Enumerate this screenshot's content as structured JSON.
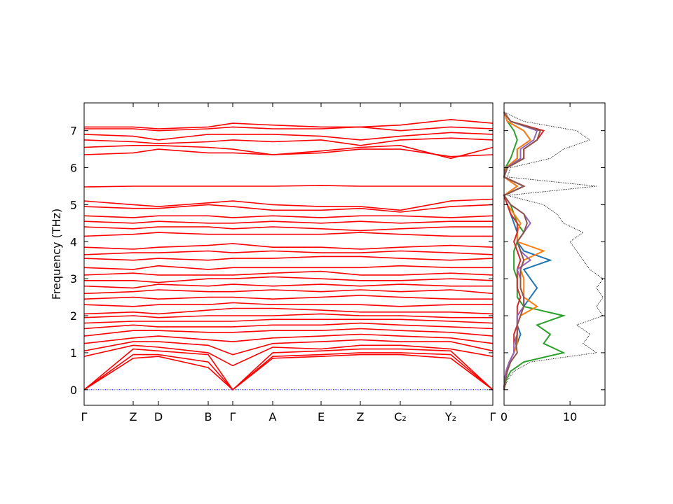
{
  "chart_data": [
    {
      "type": "bands",
      "y_label": "Frequency (THz)",
      "color": "#ff0000",
      "x": [
        0,
        0.7,
        1.06,
        1.77,
        2.12,
        2.69,
        3.38,
        3.94,
        4.51,
        5.23,
        5.83
      ],
      "xlim": [
        0,
        5.83
      ],
      "xticks": [
        {
          "value": 0,
          "label": "Γ"
        },
        {
          "value": 0.7,
          "label": "Z"
        },
        {
          "value": 1.06,
          "label": "D"
        },
        {
          "value": 1.77,
          "label": "B"
        },
        {
          "value": 2.12,
          "label": "Γ"
        },
        {
          "value": 2.69,
          "label": "A"
        },
        {
          "value": 3.38,
          "label": "E"
        },
        {
          "value": 3.94,
          "label": "Z"
        },
        {
          "value": 4.51,
          "label": "C₂"
        },
        {
          "value": 5.23,
          "label": "Y₂"
        },
        {
          "value": 5.83,
          "label": "Γ"
        }
      ],
      "ylim": [
        -0.42,
        7.75
      ],
      "yticks": [
        0,
        1,
        2,
        3,
        4,
        5,
        6,
        7
      ],
      "hline": 0,
      "hline_color": "#0000ff",
      "bands": [
        [
          0,
          0.85,
          0.9,
          0.6,
          0,
          0.85,
          0.9,
          0.95,
          0.95,
          0.85,
          0
        ],
        [
          0,
          0.95,
          0.95,
          0.75,
          0,
          0.9,
          0.95,
          1.0,
          1.0,
          0.95,
          0
        ],
        [
          0,
          1.1,
          1.05,
          0.95,
          0,
          1.0,
          1.05,
          1.1,
          1.1,
          1.05,
          0
        ],
        [
          0.9,
          1.2,
          1.15,
          1.0,
          0.65,
          1.15,
          1.1,
          1.2,
          1.2,
          1.1,
          0.9
        ],
        [
          1.05,
          1.3,
          1.3,
          1.2,
          0.95,
          1.25,
          1.3,
          1.35,
          1.3,
          1.3,
          1.05
        ],
        [
          1.25,
          1.4,
          1.45,
          1.35,
          1.3,
          1.4,
          1.45,
          1.5,
          1.45,
          1.4,
          1.25
        ],
        [
          1.45,
          1.6,
          1.6,
          1.55,
          1.55,
          1.6,
          1.6,
          1.65,
          1.6,
          1.55,
          1.45
        ],
        [
          1.65,
          1.75,
          1.7,
          1.7,
          1.7,
          1.75,
          1.75,
          1.8,
          1.75,
          1.7,
          1.65
        ],
        [
          1.8,
          1.85,
          1.85,
          1.85,
          1.85,
          1.9,
          1.9,
          1.9,
          1.9,
          1.85,
          1.8
        ],
        [
          1.95,
          2.0,
          1.95,
          2.0,
          2.0,
          2.0,
          2.05,
          2.0,
          2.0,
          1.95,
          1.95
        ],
        [
          2.05,
          2.1,
          2.05,
          2.15,
          2.2,
          2.2,
          2.15,
          2.1,
          2.1,
          2.1,
          2.05
        ],
        [
          2.3,
          2.25,
          2.3,
          2.3,
          2.35,
          2.3,
          2.3,
          2.3,
          2.25,
          2.3,
          2.3
        ],
        [
          2.45,
          2.5,
          2.45,
          2.5,
          2.5,
          2.45,
          2.5,
          2.55,
          2.5,
          2.45,
          2.45
        ],
        [
          2.6,
          2.65,
          2.7,
          2.65,
          2.65,
          2.7,
          2.65,
          2.7,
          2.65,
          2.7,
          2.6
        ],
        [
          2.8,
          2.75,
          2.85,
          2.8,
          2.85,
          2.8,
          2.85,
          2.8,
          2.85,
          2.8,
          2.8
        ],
        [
          2.95,
          2.95,
          2.9,
          3.0,
          3.0,
          3.05,
          3.0,
          2.95,
          2.95,
          3.0,
          2.95
        ],
        [
          3.1,
          3.15,
          3.1,
          3.1,
          3.1,
          3.15,
          3.2,
          3.1,
          3.1,
          3.15,
          3.1
        ],
        [
          3.3,
          3.25,
          3.35,
          3.25,
          3.3,
          3.3,
          3.3,
          3.3,
          3.35,
          3.3,
          3.3
        ],
        [
          3.55,
          3.5,
          3.55,
          3.5,
          3.55,
          3.55,
          3.6,
          3.6,
          3.55,
          3.5,
          3.55
        ],
        [
          3.65,
          3.7,
          3.7,
          3.75,
          3.7,
          3.75,
          3.7,
          3.7,
          3.75,
          3.7,
          3.65
        ],
        [
          3.85,
          3.8,
          3.85,
          3.9,
          3.95,
          3.85,
          3.85,
          3.8,
          3.85,
          3.9,
          3.85
        ],
        [
          4.15,
          4.2,
          4.25,
          4.2,
          4.2,
          4.2,
          4.2,
          4.25,
          4.2,
          4.15,
          4.15
        ],
        [
          4.4,
          4.35,
          4.4,
          4.4,
          4.35,
          4.4,
          4.35,
          4.3,
          4.35,
          4.4,
          4.4
        ],
        [
          4.55,
          4.5,
          4.55,
          4.5,
          4.5,
          4.55,
          4.5,
          4.55,
          4.5,
          4.55,
          4.55
        ],
        [
          4.7,
          4.65,
          4.7,
          4.7,
          4.65,
          4.7,
          4.65,
          4.7,
          4.7,
          4.65,
          4.7
        ],
        [
          4.95,
          4.9,
          4.9,
          5.0,
          4.95,
          4.85,
          4.85,
          4.9,
          4.8,
          4.95,
          5.0
        ],
        [
          5.1,
          5.0,
          4.95,
          5.05,
          5.1,
          5.0,
          4.95,
          4.95,
          4.85,
          5.1,
          5.15
        ],
        [
          5.48,
          5.5,
          5.5,
          5.5,
          5.5,
          5.5,
          5.52,
          5.5,
          5.5,
          5.5,
          5.5
        ],
        [
          6.35,
          6.4,
          6.5,
          6.4,
          6.4,
          6.35,
          6.4,
          6.5,
          6.5,
          6.3,
          6.35
        ],
        [
          6.55,
          6.6,
          6.6,
          6.55,
          6.5,
          6.35,
          6.45,
          6.55,
          6.6,
          6.25,
          6.55
        ],
        [
          6.75,
          6.7,
          6.65,
          6.7,
          6.75,
          6.7,
          6.75,
          6.6,
          6.75,
          6.8,
          6.75
        ],
        [
          6.9,
          6.85,
          6.75,
          6.9,
          6.9,
          6.9,
          6.85,
          6.75,
          6.85,
          6.95,
          6.9
        ],
        [
          7.05,
          7.05,
          7.0,
          7.05,
          7.1,
          7.05,
          7.05,
          7.1,
          7.0,
          7.1,
          7.05
        ],
        [
          7.1,
          7.1,
          7.05,
          7.1,
          7.2,
          7.15,
          7.1,
          7.1,
          7.15,
          7.3,
          7.2
        ]
      ]
    },
    {
      "type": "dos",
      "xlim": [
        0,
        15.3
      ],
      "xticks": [
        0,
        10
      ],
      "frequencies": [
        0,
        0.25,
        0.5,
        0.75,
        1,
        1.25,
        1.5,
        1.75,
        2,
        2.25,
        2.5,
        2.75,
        3,
        3.25,
        3.5,
        3.75,
        4,
        4.25,
        4.5,
        4.75,
        5,
        5.25,
        5.5,
        5.75,
        6,
        6.25,
        6.5,
        6.75,
        7,
        7.25,
        7.5
      ],
      "total": {
        "color": "#000000",
        "values": [
          0,
          0.5,
          1.5,
          4,
          14,
          12,
          13,
          11,
          15,
          14,
          15,
          14,
          15,
          13,
          12,
          11,
          10,
          12,
          9,
          8,
          6,
          0.5,
          14,
          0.5,
          1,
          7,
          9,
          13,
          11,
          3,
          0
        ]
      },
      "series": [
        {
          "color": "#2ca02c",
          "values": [
            0,
            0.3,
            1,
            3,
            9,
            6,
            7,
            5,
            9,
            3,
            2,
            2,
            2,
            1.5,
            1.5,
            1.5,
            2,
            3,
            2,
            1.5,
            1,
            0,
            3,
            0,
            0.2,
            1,
            1.5,
            2,
            1.5,
            0.5,
            0
          ]
        },
        {
          "color": "#1f77b4",
          "values": [
            0,
            0.1,
            0.3,
            0.8,
            1.5,
            2,
            2.5,
            2,
            2,
            3,
            4,
            5,
            4,
            3,
            7,
            3,
            2,
            2,
            1.5,
            1,
            0.5,
            0,
            2,
            0,
            0.3,
            2,
            2,
            4,
            3,
            0.5,
            0
          ]
        },
        {
          "color": "#ff7f0e",
          "values": [
            0,
            0.1,
            0.3,
            0.8,
            1.5,
            2,
            2,
            2,
            2.5,
            5,
            3,
            3,
            3,
            2.5,
            3,
            6,
            2,
            2,
            2.5,
            1.5,
            0.5,
            0,
            2,
            0,
            0.3,
            2,
            2,
            4,
            3,
            0.5,
            0
          ]
        },
        {
          "color": "#d62728",
          "values": [
            0,
            0.1,
            0.3,
            0.8,
            1.5,
            1.5,
            1.5,
            2,
            2,
            2,
            2.5,
            2,
            2,
            2,
            2.5,
            2,
            1.5,
            2,
            2,
            1,
            0.5,
            0,
            3,
            0,
            0.5,
            3,
            3,
            5,
            6,
            1,
            0
          ]
        },
        {
          "color": "#9467bd",
          "values": [
            0,
            0.1,
            0.3,
            0.8,
            1.5,
            1.5,
            2,
            2,
            2,
            3,
            3,
            2.5,
            2.5,
            2,
            4,
            2.5,
            2,
            3,
            4,
            3,
            1,
            0,
            3,
            0,
            0.4,
            2.5,
            2.5,
            4.5,
            5,
            1,
            0
          ]
        },
        {
          "color": "#8c564b",
          "values": [
            0,
            0.2,
            0.5,
            1,
            2,
            1.8,
            2,
            2,
            2.5,
            3,
            3,
            2.5,
            2.5,
            2.5,
            3,
            2.5,
            2,
            3,
            3.5,
            3,
            1,
            0,
            3,
            0,
            0.5,
            3,
            3,
            5,
            5.5,
            1,
            0
          ]
        }
      ]
    }
  ]
}
